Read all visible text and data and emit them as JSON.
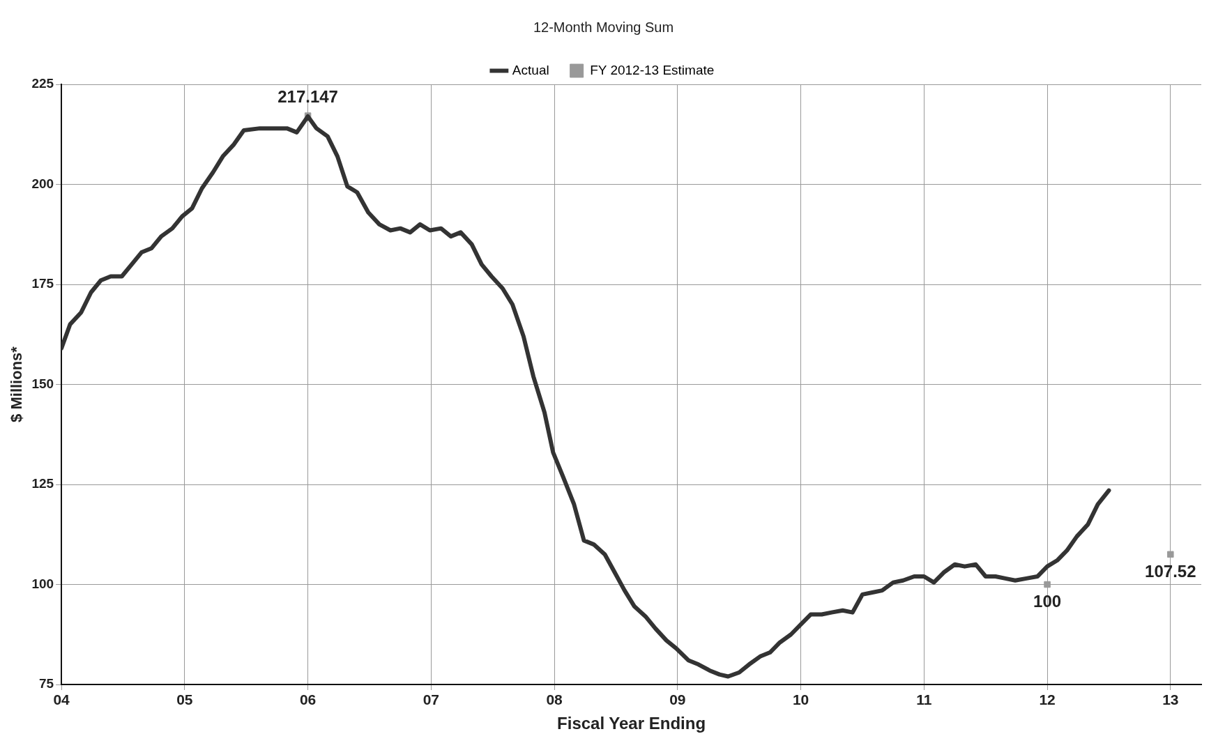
{
  "chart_data": {
    "type": "line",
    "title": "12-Month Moving Sum",
    "xlabel": "Fiscal Year Ending",
    "ylabel": "$ Millions*",
    "xlim": [
      4,
      13.25
    ],
    "xticks": [
      {
        "value": 4,
        "label": "04"
      },
      {
        "value": 5,
        "label": "05"
      },
      {
        "value": 6,
        "label": "06"
      },
      {
        "value": 7,
        "label": "07"
      },
      {
        "value": 8,
        "label": "08"
      },
      {
        "value": 9,
        "label": "09"
      },
      10,
      11,
      12,
      13
    ],
    "ylim": [
      75,
      225
    ],
    "yticks": [
      75,
      100,
      125,
      150,
      175,
      200,
      225
    ],
    "grid": true,
    "legend": "top",
    "marker": "none",
    "line_style": "solid",
    "series": [
      {
        "name": "Actual",
        "color": "#333333",
        "x": [
          4.0,
          4.07,
          4.16,
          4.24,
          4.32,
          4.4,
          4.49,
          4.57,
          4.65,
          4.73,
          4.81,
          4.9,
          4.98,
          5.06,
          5.14,
          5.23,
          5.31,
          5.4,
          5.48,
          5.61,
          5.74,
          5.83,
          5.91,
          6.0,
          6.07,
          6.16,
          6.24,
          6.32,
          6.4,
          6.49,
          6.58,
          6.67,
          6.75,
          6.83,
          6.91,
          6.99,
          7.08,
          7.16,
          7.24,
          7.33,
          7.41,
          7.49,
          7.58,
          7.66,
          7.75,
          7.83,
          7.92,
          7.99,
          8.07,
          8.16,
          8.24,
          8.32,
          8.41,
          8.49,
          8.57,
          8.65,
          8.74,
          8.82,
          8.91,
          8.99,
          9.09,
          9.17,
          9.26,
          9.34,
          9.41,
          9.5,
          9.58,
          9.67,
          9.75,
          9.83,
          9.92,
          10.0,
          10.08,
          10.17,
          10.25,
          10.34,
          10.42,
          10.5,
          10.58,
          10.66,
          10.75,
          10.83,
          10.92,
          11.0,
          11.08,
          11.16,
          11.25,
          11.33,
          11.42,
          11.5,
          11.58,
          11.66,
          11.74,
          11.83,
          11.92,
          12.0,
          12.08,
          12.16,
          12.24,
          12.33,
          12.41,
          12.5
        ],
        "values": [
          159,
          165,
          168,
          173,
          176,
          177,
          177,
          180,
          183,
          184,
          187,
          189,
          192,
          194,
          199,
          203,
          207,
          210,
          213.5,
          214,
          214,
          214,
          213,
          217,
          214,
          212,
          207,
          199.5,
          198,
          193,
          190,
          188.5,
          189,
          188,
          190,
          188.5,
          189,
          187,
          188,
          185,
          180,
          177,
          174,
          170,
          162,
          152,
          143,
          133,
          127,
          120,
          111,
          110,
          107.5,
          103,
          98.5,
          94.5,
          92,
          89,
          86,
          84,
          81,
          80,
          78.5,
          77.5,
          77,
          78,
          80,
          82,
          83,
          85.5,
          87.5,
          90,
          92.5,
          92.5,
          93,
          93.5,
          93,
          97.5,
          98,
          98.5,
          100.5,
          101,
          102,
          102,
          100.5,
          103,
          105,
          104.5,
          105,
          102,
          102,
          101.5,
          101,
          101.5,
          102,
          104.5,
          106,
          108.5,
          112,
          115,
          120,
          123.5
        ]
      },
      {
        "name": "FY 2012-13 Estimate",
        "type": "scatter",
        "marker": "square",
        "color": "#999999",
        "x": [
          6,
          12,
          13
        ],
        "values": [
          217.147,
          100,
          107.52
        ],
        "value_labels": [
          "217.147",
          "100",
          "107.52"
        ]
      }
    ]
  }
}
